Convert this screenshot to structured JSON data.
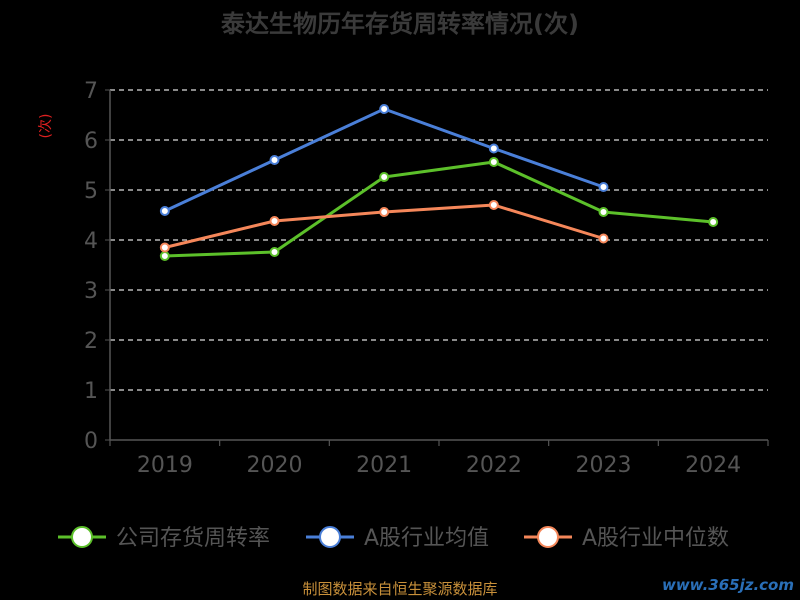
{
  "title": "泰达生物历年存货周转率情况(次)",
  "footer": "制图数据来自恒生聚源数据库",
  "watermark": "www.365jz.com",
  "colors": {
    "background": "#000000",
    "axis": "#555555",
    "grid": "#dddddd",
    "tick_label": "#555555",
    "ylabel": "#e02020"
  },
  "chart_data": {
    "type": "line",
    "title": "泰达生物历年存货周转率情况(次)",
    "xlabel": "",
    "ylabel": "(次)",
    "categories": [
      "2019",
      "2020",
      "2021",
      "2022",
      "2023",
      "2024"
    ],
    "ylim": [
      0,
      7
    ],
    "yticks": [
      0,
      1,
      2,
      3,
      4,
      5,
      6,
      7
    ],
    "grid": true,
    "legend": "bottom",
    "series": [
      {
        "name": "公司存货周转率",
        "color": "#5cc02a",
        "values": [
          3.68,
          3.76,
          5.26,
          5.56,
          4.56,
          4.36
        ]
      },
      {
        "name": "A股行业均值",
        "color": "#4a7fd8",
        "values": [
          4.58,
          5.6,
          6.62,
          5.83,
          5.06,
          null
        ]
      },
      {
        "name": "A股行业中位数",
        "color": "#f5875a",
        "values": [
          3.85,
          4.38,
          4.56,
          4.7,
          4.03,
          null
        ]
      }
    ]
  }
}
